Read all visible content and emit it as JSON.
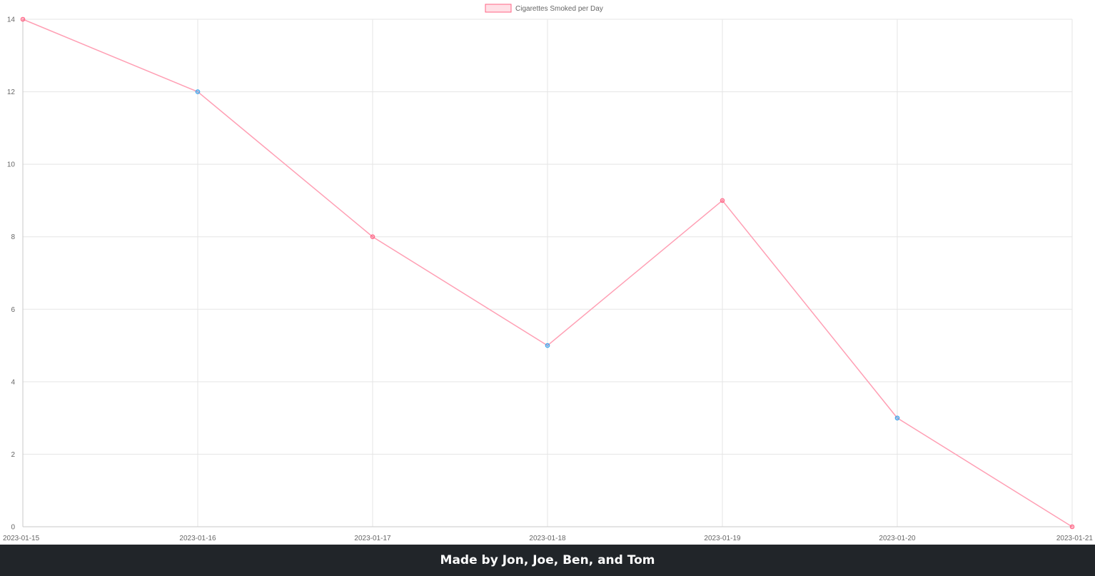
{
  "chart_data": {
    "type": "line",
    "x": [
      "2023-01-15",
      "2023-01-16",
      "2023-01-17",
      "2023-01-18",
      "2023-01-19",
      "2023-01-20",
      "2023-01-21"
    ],
    "series": [
      {
        "name": "Cigarettes Smoked per Day",
        "values": [
          14,
          12,
          8,
          5,
          9,
          3,
          0
        ]
      }
    ],
    "point_colors": [
      "#ff6384",
      "#36a2eb",
      "#ff6384",
      "#36a2eb",
      "#ff6384",
      "#36a2eb",
      "#ff6384"
    ],
    "line_color": "#ff9fb4",
    "legend_fill": "#ffe0e6",
    "legend_stroke": "#ff6384",
    "yticks": [
      0,
      2,
      4,
      6,
      8,
      10,
      12,
      14
    ],
    "ylim": [
      0,
      14
    ],
    "grid": true,
    "grid_color": "#e5e5e5",
    "legend_position": "top-center"
  },
  "footer": {
    "text": "Made by Jon, Joe, Ben, and Tom"
  }
}
